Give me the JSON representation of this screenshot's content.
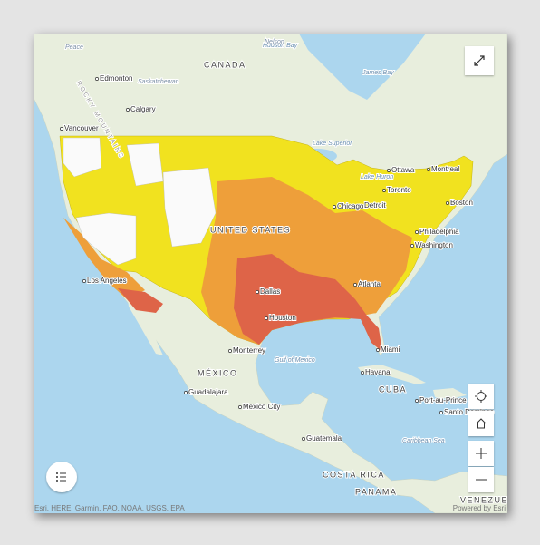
{
  "map": {
    "countries": [
      "CANADA",
      "UNITED STATES",
      "MÉXICO",
      "CUBA",
      "COSTA RICA",
      "PANAMA",
      "VENEZUELA"
    ],
    "cities": [
      "Edmonton",
      "Calgary",
      "Vancouver",
      "Ottawa",
      "Montreal",
      "Toronto",
      "Boston",
      "Detroit",
      "Chicago",
      "Philadelphia",
      "Washington",
      "Atlanta",
      "Dallas",
      "Houston",
      "Miami",
      "Los Angeles",
      "Monterrey",
      "Guadalajara",
      "Mexico City",
      "Havana",
      "Port-au-Prince",
      "Santo Domingo",
      "Guatemala"
    ],
    "water": [
      "Lake Superior",
      "Lake Huron",
      "James Bay",
      "Gulf of Mexico",
      "Caribbean Sea",
      "Hudson Bay"
    ],
    "features": [
      "Peace",
      "Nelson",
      "Saskatchewan",
      "ROCKY MOUNTAINS"
    ],
    "attribution": "Esri, HERE, Garmin, FAO, NOAA, USGS, EPA",
    "powered_by": "Powered by Esri"
  }
}
